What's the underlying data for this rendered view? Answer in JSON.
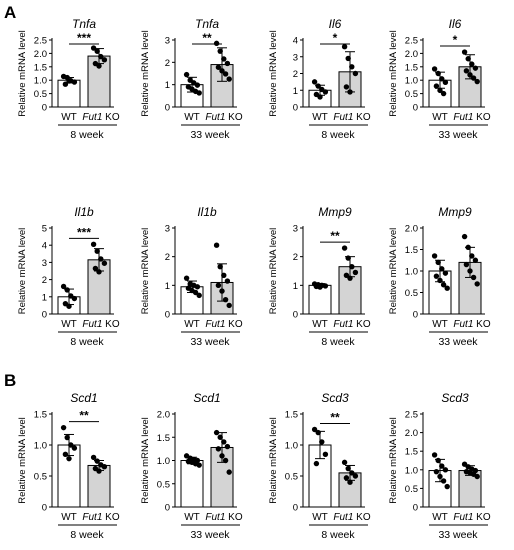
{
  "panels": [
    {
      "letter": "A"
    },
    {
      "letter": "B"
    }
  ],
  "chart_data": [
    {
      "type": "bar",
      "title": "Tnfa",
      "ylabel": "Relative mRNA level",
      "ylim": [
        0,
        2.5
      ],
      "yticks": [
        "0",
        "0.5",
        "1.0",
        "1.5",
        "2.0",
        "2.5"
      ],
      "categories": [
        "WT",
        "Fut1 KO"
      ],
      "age": "8 week",
      "significance": "***",
      "values": [
        1.0,
        1.9
      ],
      "errors": [
        0.1,
        0.28
      ],
      "points": [
        [
          1.14,
          1.1,
          0.98,
          0.93,
          0.85,
          0.97
        ],
        [
          2.2,
          2.08,
          1.88,
          1.76,
          1.62,
          1.53
        ]
      ]
    },
    {
      "type": "bar",
      "title": "Tnfa",
      "ylabel": "Relative mRNA level",
      "ylim": [
        0,
        3
      ],
      "yticks": [
        "0",
        "1",
        "2",
        "3"
      ],
      "categories": [
        "WT",
        "Fut1 KO"
      ],
      "age": "33 week",
      "significance": "**",
      "values": [
        1.0,
        1.9
      ],
      "errors": [
        0.33,
        0.75
      ],
      "points": [
        [
          1.45,
          1.2,
          1.08,
          0.98,
          0.9,
          0.8,
          0.7,
          0.63
        ],
        [
          2.85,
          2.5,
          2.15,
          1.95,
          1.78,
          1.62,
          1.48,
          1.25
        ]
      ]
    },
    {
      "type": "bar",
      "title": "Il6",
      "ylabel": "Relative mRNA level",
      "ylim": [
        0,
        4
      ],
      "yticks": [
        "0",
        "1",
        "2",
        "3",
        "4"
      ],
      "categories": [
        "WT",
        "Fut1 KO"
      ],
      "age": "8 week",
      "significance": "*",
      "values": [
        1.0,
        2.1
      ],
      "errors": [
        0.3,
        1.2
      ],
      "points": [
        [
          1.5,
          1.25,
          1.05,
          0.9,
          0.75,
          0.6
        ],
        [
          3.6,
          2.9,
          2.4,
          2.0,
          1.2,
          0.9
        ]
      ]
    },
    {
      "type": "bar",
      "title": "Il6",
      "ylabel": "Relative mRNA level",
      "ylim": [
        0,
        2.5
      ],
      "yticks": [
        "0",
        "0.5",
        "1.0",
        "1.5",
        "2.0",
        "2.5"
      ],
      "categories": [
        "WT",
        "Fut1 KO"
      ],
      "age": "33 week",
      "significance": "*",
      "values": [
        1.0,
        1.5
      ],
      "errors": [
        0.3,
        0.45
      ],
      "points": [
        [
          1.42,
          1.25,
          1.05,
          0.92,
          0.78,
          0.62,
          0.5
        ],
        [
          2.05,
          1.8,
          1.6,
          1.45,
          1.35,
          1.2,
          1.08,
          0.95
        ]
      ]
    },
    {
      "type": "bar",
      "title": "Il1b",
      "ylabel": "Relative mRNA level",
      "ylim": [
        0,
        5
      ],
      "yticks": [
        "0",
        "1",
        "2",
        "3",
        "4",
        "5"
      ],
      "categories": [
        "WT",
        "Fut1 KO"
      ],
      "age": "8 week",
      "significance": "***",
      "values": [
        1.0,
        3.15
      ],
      "errors": [
        0.45,
        0.65
      ],
      "points": [
        [
          1.6,
          1.4,
          1.05,
          0.9,
          0.6,
          0.45
        ],
        [
          4.05,
          3.65,
          3.2,
          2.95,
          2.65,
          2.45
        ]
      ]
    },
    {
      "type": "bar",
      "title": "Il1b",
      "ylabel": "Relative mRNA level",
      "ylim": [
        0,
        3
      ],
      "yticks": [
        "0",
        "1",
        "2",
        "3"
      ],
      "categories": [
        "WT",
        "Fut1 KO"
      ],
      "age": "33 week",
      "significance": "",
      "values": [
        0.95,
        1.1
      ],
      "errors": [
        0.2,
        0.65
      ],
      "points": [
        [
          1.25,
          1.05,
          1.0,
          0.95,
          0.9,
          0.82,
          0.75,
          0.65
        ],
        [
          2.4,
          1.65,
          1.35,
          1.15,
          1.0,
          0.8,
          0.5,
          0.3
        ]
      ]
    },
    {
      "type": "bar",
      "title": "Mmp9",
      "ylabel": "Relative mRNA level",
      "ylim": [
        0,
        3
      ],
      "yticks": [
        "0",
        "1",
        "2",
        "3"
      ],
      "categories": [
        "WT",
        "Fut1 KO"
      ],
      "age": "8 week",
      "significance": "**",
      "values": [
        1.0,
        1.65
      ],
      "errors": [
        0.06,
        0.35
      ],
      "points": [
        [
          1.05,
          1.02,
          1.0,
          0.98,
          0.96,
          0.94
        ],
        [
          2.3,
          1.95,
          1.65,
          1.45,
          1.35,
          1.25
        ]
      ]
    },
    {
      "type": "bar",
      "title": "Mmp9",
      "ylabel": "Relative mRNA level",
      "ylim": [
        0,
        2
      ],
      "yticks": [
        "0",
        "0.5",
        "1.0",
        "1.5",
        "2.0"
      ],
      "categories": [
        "WT",
        "Fut1 KO"
      ],
      "age": "33 week",
      "significance": "",
      "values": [
        1.0,
        1.2
      ],
      "errors": [
        0.25,
        0.35
      ],
      "points": [
        [
          1.35,
          1.2,
          1.05,
          0.95,
          0.88,
          0.78,
          0.68,
          0.6
        ],
        [
          1.8,
          1.55,
          1.35,
          1.25,
          1.15,
          1.0,
          0.85,
          0.7
        ]
      ]
    },
    {
      "type": "bar",
      "title": "Scd1",
      "ylabel": "Relative mRNA level",
      "ylim": [
        0,
        1.5
      ],
      "yticks": [
        "0",
        "0.5",
        "1.0",
        "1.5"
      ],
      "categories": [
        "WT",
        "Fut1 KO"
      ],
      "age": "8 week",
      "significance": "**",
      "values": [
        1.0,
        0.67
      ],
      "errors": [
        0.17,
        0.08
      ],
      "points": [
        [
          1.28,
          1.12,
          1.0,
          0.95,
          0.85,
          0.78
        ],
        [
          0.8,
          0.74,
          0.68,
          0.65,
          0.62,
          0.58
        ]
      ]
    },
    {
      "type": "bar",
      "title": "Scd1",
      "ylabel": "Relative mRNA level",
      "ylim": [
        0,
        2
      ],
      "yticks": [
        "0",
        "0.5",
        "1.0",
        "1.5",
        "2.0"
      ],
      "categories": [
        "WT",
        "Fut1 KO"
      ],
      "age": "33 week",
      "significance": "",
      "values": [
        1.0,
        1.28
      ],
      "errors": [
        0.07,
        0.32
      ],
      "points": [
        [
          1.1,
          1.05,
          1.02,
          1.0,
          0.98,
          0.96,
          0.93,
          0.9
        ],
        [
          1.6,
          1.5,
          1.4,
          1.3,
          1.25,
          1.1,
          1.0,
          0.75
        ]
      ]
    },
    {
      "type": "bar",
      "title": "Scd3",
      "ylabel": "Relative mRNA level",
      "ylim": [
        0,
        1.5
      ],
      "yticks": [
        "0",
        "0.5",
        "1.0",
        "1.5"
      ],
      "categories": [
        "WT",
        "Fut1 KO"
      ],
      "age": "8 week",
      "significance": "**",
      "values": [
        1.0,
        0.55
      ],
      "errors": [
        0.22,
        0.12
      ],
      "points": [
        [
          1.25,
          1.2,
          1.05,
          0.85,
          0.7
        ],
        [
          0.72,
          0.62,
          0.55,
          0.5,
          0.47,
          0.4
        ]
      ]
    },
    {
      "type": "bar",
      "title": "Scd3",
      "ylabel": "Relative mRNA level",
      "ylim": [
        0,
        2.5
      ],
      "yticks": [
        "0",
        "0.5",
        "1.0",
        "1.5",
        "2.0",
        "2.5"
      ],
      "categories": [
        "WT",
        "Fut1 KO"
      ],
      "age": "33 week",
      "significance": "",
      "values": [
        0.98,
        0.98
      ],
      "errors": [
        0.3,
        0.13
      ],
      "points": [
        [
          1.4,
          1.25,
          1.1,
          1.0,
          0.95,
          0.82,
          0.7,
          0.55
        ],
        [
          1.15,
          1.08,
          1.02,
          0.98,
          0.95,
          0.92,
          0.88,
          0.82
        ]
      ]
    }
  ]
}
